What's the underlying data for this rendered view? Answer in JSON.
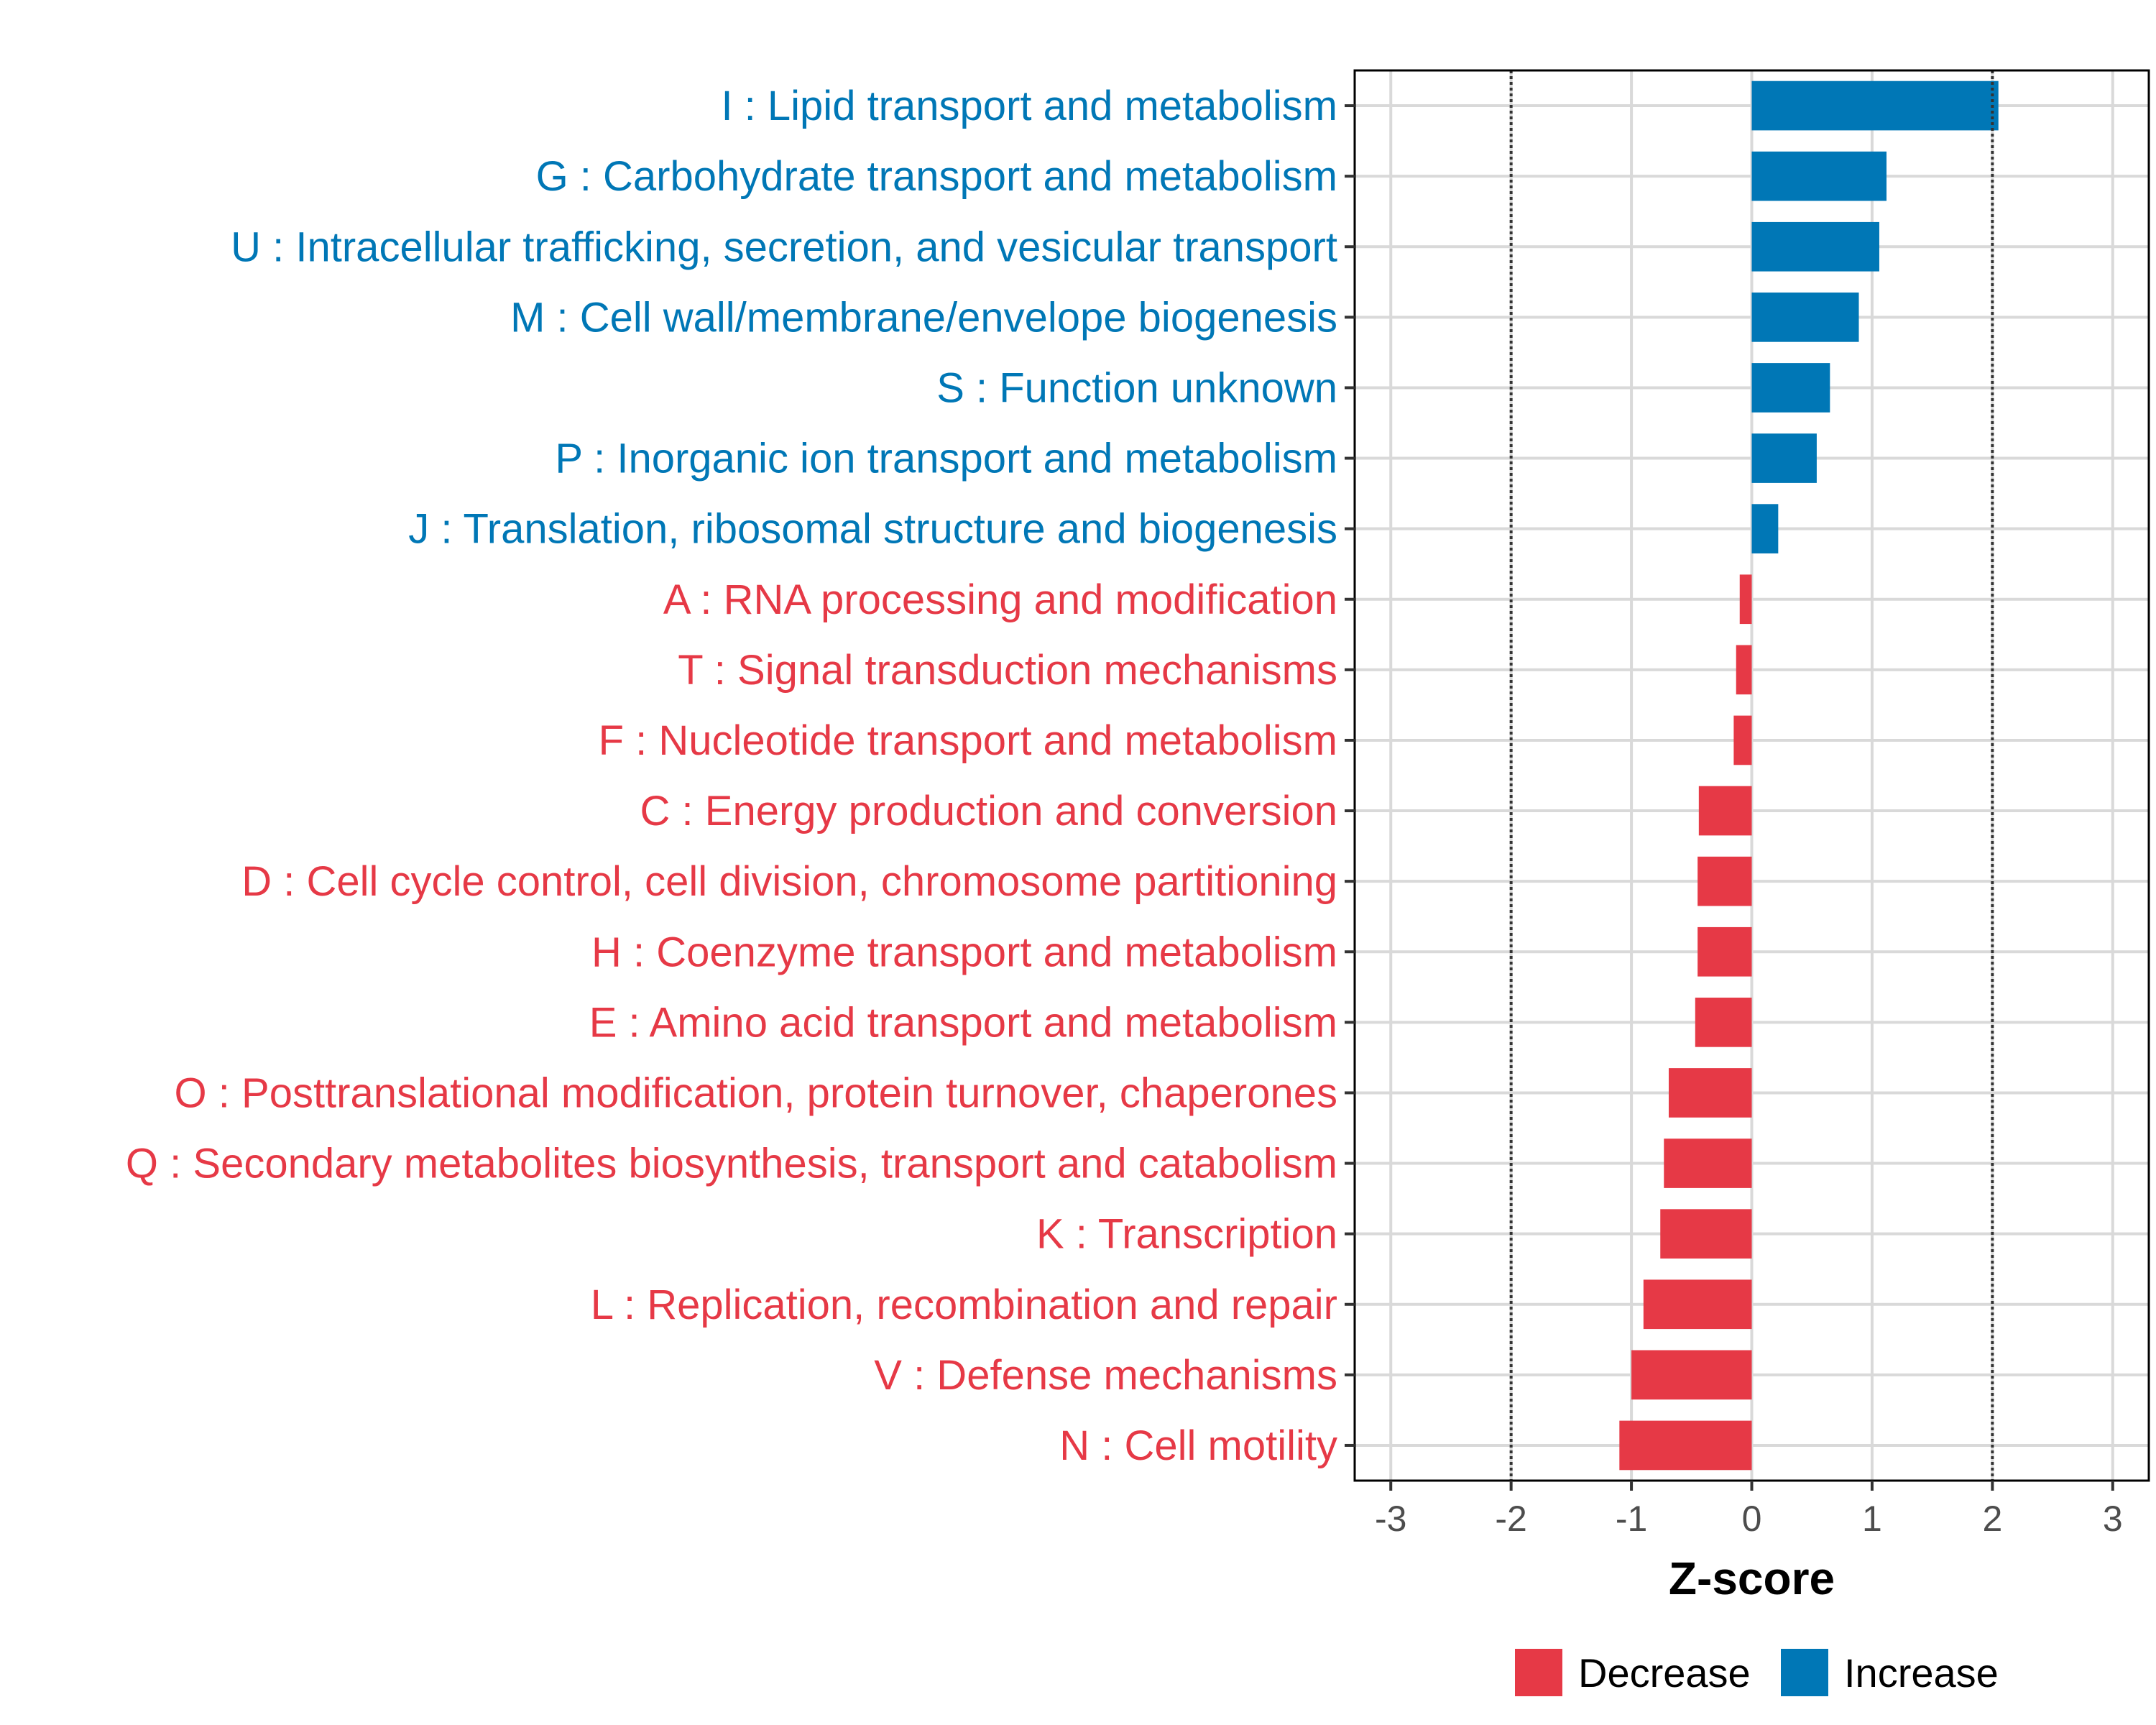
{
  "chart_data": {
    "type": "bar",
    "orientation": "horizontal",
    "title": "",
    "xlabel": "Z-score",
    "ylabel": "",
    "xlim": [
      -3.3,
      3.3
    ],
    "x_ticks": [
      "-3",
      "-2",
      "-1",
      "0",
      "1",
      "2",
      "3"
    ],
    "reference_lines": [
      -2,
      2
    ],
    "grid": true,
    "legend_position": "bottom",
    "colors": {
      "Decrease": "#e63946",
      "Increase": "#0077b6"
    },
    "legend": [
      {
        "name": "Decrease",
        "color": "#e63946"
      },
      {
        "name": "Increase",
        "color": "#0077b6"
      }
    ],
    "categories": [
      "I : Lipid transport and metabolism",
      "G : Carbohydrate transport and metabolism",
      "U : Intracellular trafficking, secretion, and vesicular transport",
      "M : Cell wall/membrane/envelope biogenesis",
      "S : Function unknown",
      "P : Inorganic ion transport and metabolism",
      "J : Translation, ribosomal structure and biogenesis",
      "A : RNA processing and modification",
      "T : Signal transduction mechanisms",
      "F : Nucleotide transport and metabolism",
      "C : Energy production and conversion",
      "D : Cell cycle control, cell division, chromosome partitioning",
      "H : Coenzyme transport and metabolism",
      "E : Amino acid transport and metabolism",
      "O : Posttranslational modification, protein turnover, chaperones",
      "Q : Secondary metabolites biosynthesis, transport and catabolism",
      "K : Transcription",
      "L : Replication, recombination and repair",
      "V : Defense mechanisms",
      "N : Cell motility"
    ],
    "values": [
      2.05,
      1.12,
      1.06,
      0.89,
      0.65,
      0.54,
      0.22,
      -0.1,
      -0.13,
      -0.15,
      -0.44,
      -0.45,
      -0.45,
      -0.47,
      -0.69,
      -0.73,
      -0.76,
      -0.9,
      -1.0,
      -1.1
    ],
    "direction": [
      "Increase",
      "Increase",
      "Increase",
      "Increase",
      "Increase",
      "Increase",
      "Increase",
      "Decrease",
      "Decrease",
      "Decrease",
      "Decrease",
      "Decrease",
      "Decrease",
      "Decrease",
      "Decrease",
      "Decrease",
      "Decrease",
      "Decrease",
      "Decrease",
      "Decrease"
    ]
  }
}
